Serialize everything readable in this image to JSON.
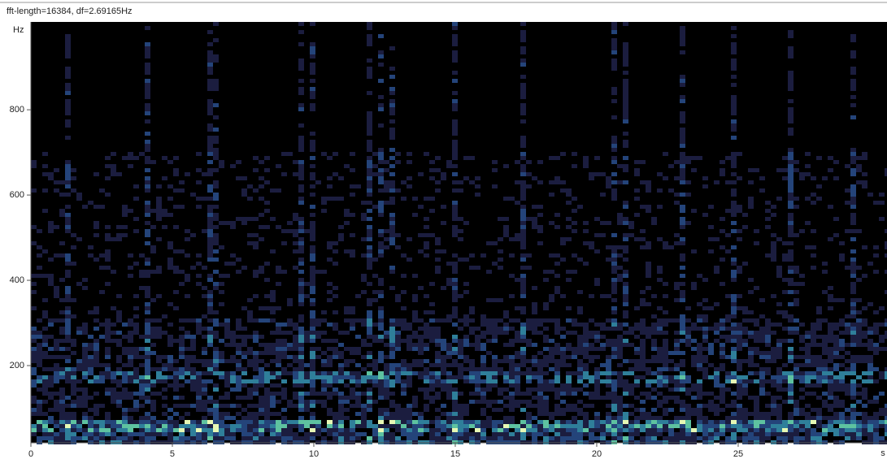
{
  "chart_data": {
    "type": "spectrogram",
    "title": "fft-length=16384, df=2.69165Hz",
    "y_label": "Hz",
    "x_label": "s",
    "xlim": [
      0,
      30.26
    ],
    "ylim": [
      19,
      1006
    ],
    "xticks": [
      0,
      5,
      10,
      15,
      20,
      25
    ],
    "yticks": [
      200,
      400,
      600,
      800
    ],
    "colormap": [
      "#000000",
      "#1b1d3f",
      "#24447a",
      "#2f7f9a",
      "#5ec2a0",
      "#e6f8b4"
    ]
  }
}
